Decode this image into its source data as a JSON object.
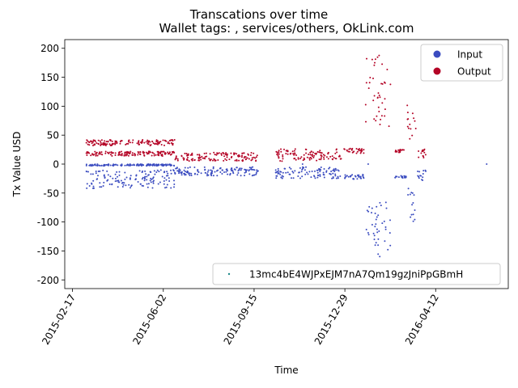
{
  "chart_data": {
    "type": "scatter",
    "title": "Transcations over time",
    "subtitle": "Wallet tags: , services/others, OkLink.com",
    "xlabel": "Time",
    "ylabel": "Tx Value USD",
    "xlim": [
      "2015-02-08",
      "2016-07-05"
    ],
    "ylim": [
      -215,
      215
    ],
    "x_tick_labels": [
      "2015-02-17",
      "2015-06-02",
      "2015-09-15",
      "2015-12-29",
      "2016-04-12"
    ],
    "y_ticks": [
      -200,
      -150,
      -100,
      -50,
      0,
      50,
      100,
      150,
      200
    ],
    "legend": {
      "placement": "top-right",
      "entries": [
        {
          "label": "Input",
          "color": "#3b4cc0"
        },
        {
          "label": "Output",
          "color": "#b40426"
        }
      ]
    },
    "wallet_legend": {
      "placement": "bottom-right",
      "label": "13mc4bE4WJPxEJM7nA7Qm19gzJniPpGBmH",
      "color": "#1f8a8a"
    },
    "grid": false,
    "series": [
      {
        "name": "Input",
        "color": "#3b4cc0",
        "clusters": [
          {
            "x_start": "2015-03-05",
            "x_end": "2015-06-15",
            "y_min": -42,
            "y_max": -10
          },
          {
            "x_start": "2015-03-05",
            "x_end": "2015-06-15",
            "y_min": -3,
            "y_max": 0
          },
          {
            "x_start": "2015-06-15",
            "x_end": "2015-09-20",
            "y_min": -20,
            "y_max": -5
          },
          {
            "x_start": "2015-10-10",
            "x_end": "2015-12-25",
            "y_min": -25,
            "y_max": -5
          },
          {
            "x_start": "2015-12-28",
            "x_end": "2016-01-20",
            "y_min": -26,
            "y_max": -18
          },
          {
            "x_start": "2016-01-22",
            "x_end": "2016-02-20",
            "y_min": -160,
            "y_max": -65
          },
          {
            "x_start": "2016-02-25",
            "x_end": "2016-03-10",
            "y_min": -24,
            "y_max": -20
          },
          {
            "x_start": "2016-03-10",
            "x_end": "2016-03-20",
            "y_min": -105,
            "y_max": -40
          },
          {
            "x_start": "2016-03-22",
            "x_end": "2016-04-01",
            "y_min": -28,
            "y_max": -10
          }
        ],
        "points": [
          {
            "x": "2016-06-10",
            "y": 0
          },
          {
            "x": "2016-01-25",
            "y": 0
          },
          {
            "x": "2015-11-10",
            "y": 0
          }
        ]
      },
      {
        "name": "Output",
        "color": "#b40426",
        "clusters": [
          {
            "x_start": "2015-03-05",
            "x_end": "2015-06-15",
            "y_min": 32,
            "y_max": 42
          },
          {
            "x_start": "2015-03-05",
            "x_end": "2015-06-15",
            "y_min": 14,
            "y_max": 22
          },
          {
            "x_start": "2015-06-15",
            "x_end": "2015-09-20",
            "y_min": 5,
            "y_max": 20
          },
          {
            "x_start": "2015-10-10",
            "x_end": "2015-12-25",
            "y_min": 5,
            "y_max": 26
          },
          {
            "x_start": "2015-12-28",
            "x_end": "2016-01-20",
            "y_min": 18,
            "y_max": 27
          },
          {
            "x_start": "2016-01-22",
            "x_end": "2016-02-20",
            "y_min": 65,
            "y_max": 195
          },
          {
            "x_start": "2016-02-25",
            "x_end": "2016-03-10",
            "y_min": 20,
            "y_max": 25
          },
          {
            "x_start": "2016-03-10",
            "x_end": "2016-03-20",
            "y_min": 40,
            "y_max": 106
          },
          {
            "x_start": "2016-03-22",
            "x_end": "2016-04-01",
            "y_min": 10,
            "y_max": 30
          }
        ],
        "points": []
      }
    ]
  }
}
